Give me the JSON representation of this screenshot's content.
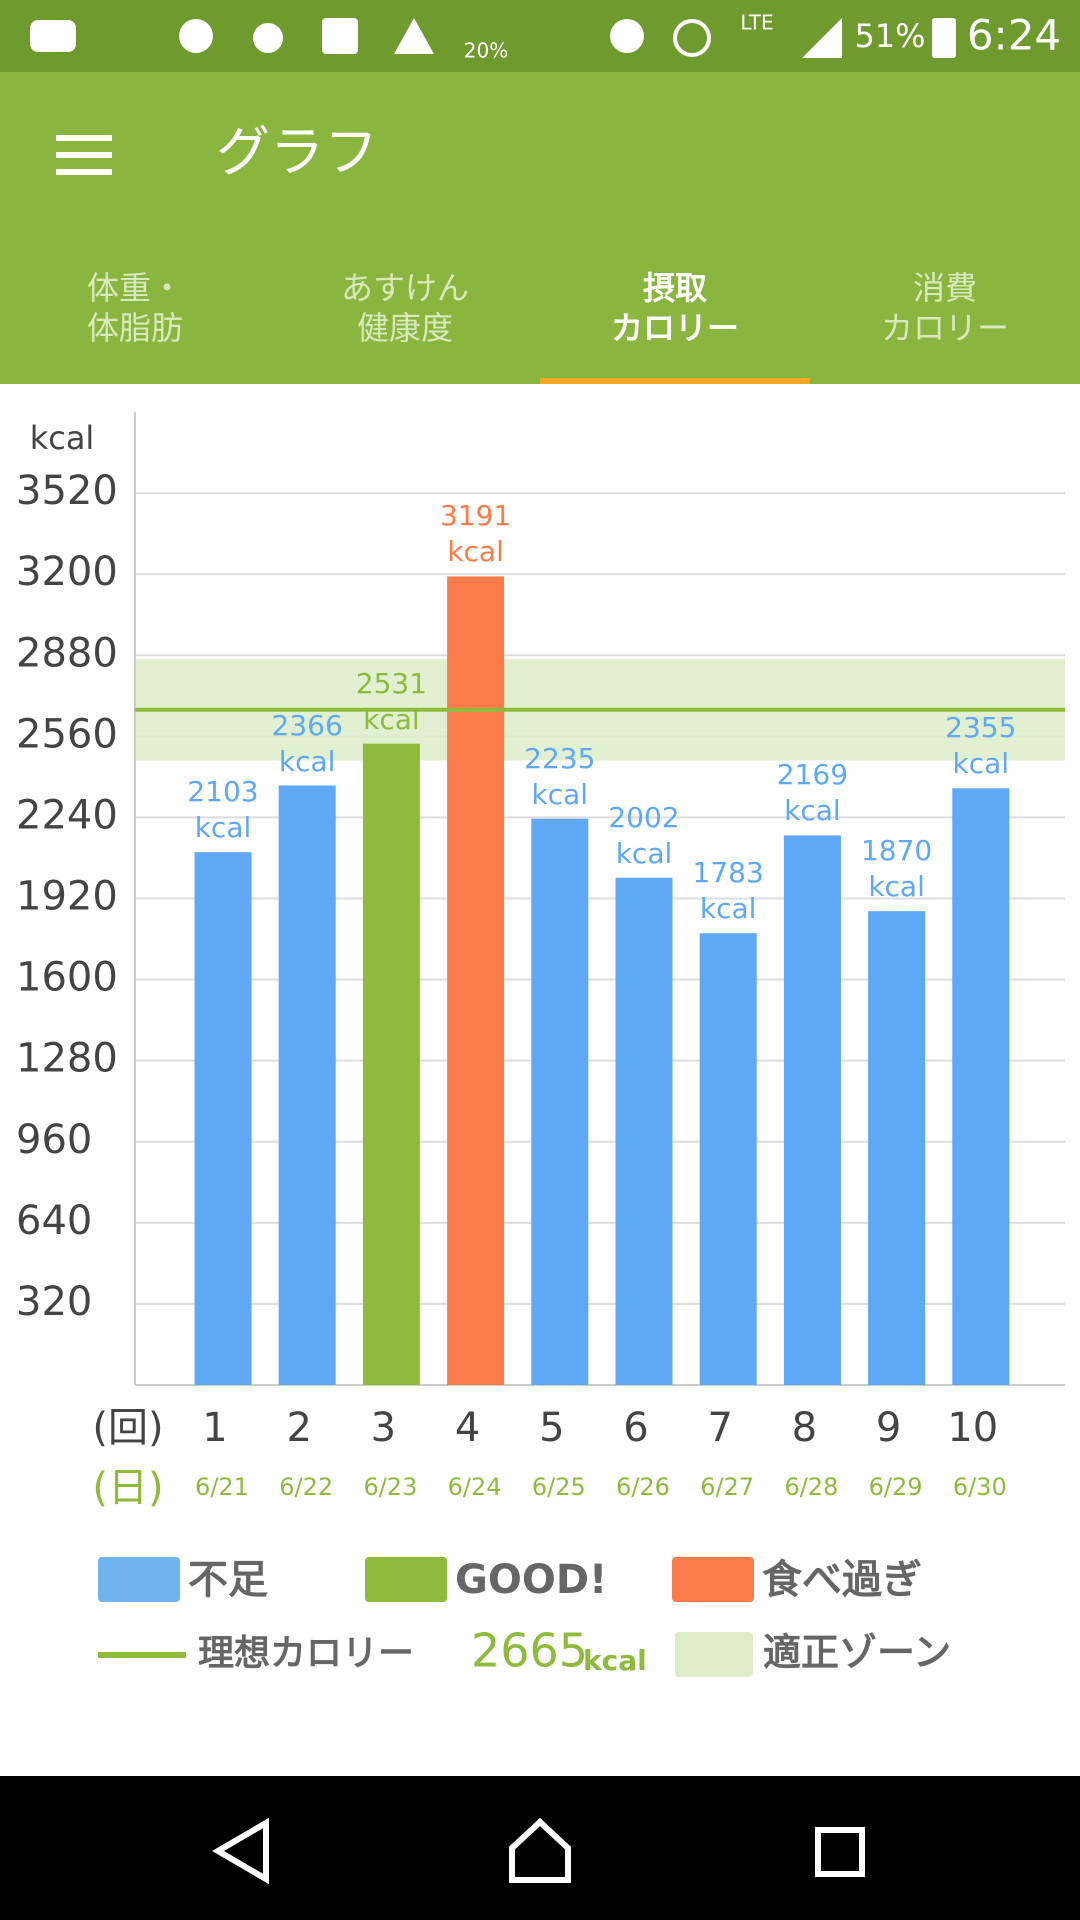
{
  "status_bar": {
    "weather_chance": "20%",
    "network": "LTE",
    "battery": "51%",
    "time": "6:24"
  },
  "app_bar": {
    "title": "グラフ"
  },
  "tabs": [
    [
      "体重・",
      "体脂肪"
    ],
    [
      "あすけん",
      "健康度"
    ],
    [
      "摂取",
      "カロリー"
    ],
    [
      "消費",
      "カロリー"
    ]
  ],
  "chart_data": {
    "type": "bar",
    "y_unit": "kcal",
    "x_label": "(回)",
    "date_label": "(日)",
    "categories": [
      "1",
      "2",
      "3",
      "4",
      "5",
      "6",
      "7",
      "8",
      "9",
      "10"
    ],
    "dates": [
      "6/21",
      "6/22",
      "6/23",
      "6/24",
      "6/25",
      "6/26",
      "6/27",
      "6/28",
      "6/29",
      "6/30"
    ],
    "values": [
      2103,
      2366,
      2531,
      3191,
      2235,
      2002,
      1783,
      2169,
      1870,
      2355
    ],
    "value_labels": [
      "2103 kcal",
      "2366 kcal",
      "2531 kcal",
      "3191 kcal",
      "2235 kcal",
      "2002 kcal",
      "1783 kcal",
      "2169 kcal",
      "1870 kcal",
      "2355 kcal"
    ],
    "colors": [
      "#5fa8f5",
      "#5fa8f5",
      "#8fbb3d",
      "#fb7c48",
      "#5fa8f5",
      "#5fa8f5",
      "#5fa8f5",
      "#5fa8f5",
      "#5fa8f5",
      "#5fa8f5"
    ],
    "ylim": [
      0,
      3840
    ],
    "yticks": [
      320,
      640,
      960,
      1280,
      1600,
      1920,
      2240,
      2560,
      2880,
      3200,
      3520
    ],
    "grid": true,
    "target": {
      "name": "理想カロリー",
      "value": 2665,
      "unit": "kcal",
      "color": "#8fbb3d"
    },
    "zone": {
      "name": "適正ゾーン",
      "range": [
        2465,
        2865
      ],
      "color": "#dcedc8"
    },
    "legend": [
      {
        "name": "不足",
        "color": "#6fb4ec"
      },
      {
        "name": "GOOD!",
        "color": "#8fbb3d"
      },
      {
        "name": "食べ過ぎ",
        "color": "#fb7c48"
      }
    ]
  }
}
